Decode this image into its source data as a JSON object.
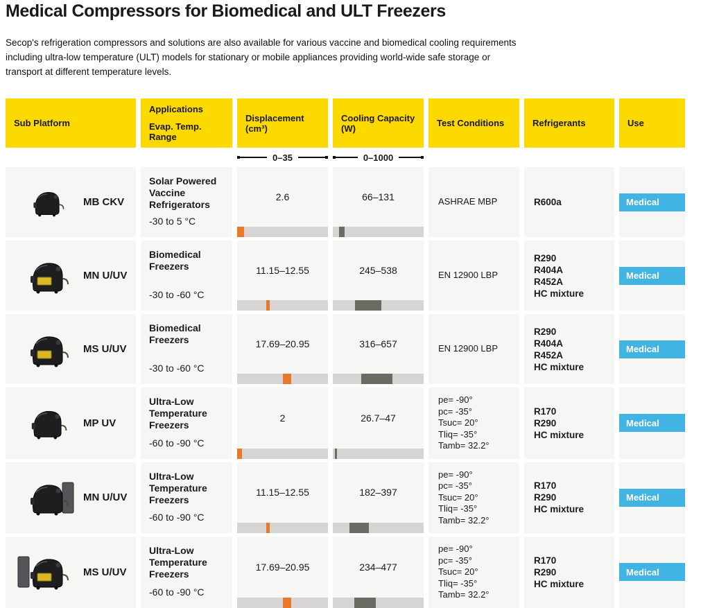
{
  "page": {
    "title": "Medical Compressors for Biomedical and ULT Freezers",
    "description": "Secop's refrigeration compressors and solutions are also available for various vaccine and biomedical cooling requirements including ultra-low temperature (ULT) models for stationary or mobile appliances providing world-wide safe storage or transport at different temperature levels."
  },
  "colors": {
    "accent_yellow": "#FCD900",
    "badge_blue": "#41B4E4",
    "bar_orange": "#E8792C",
    "bar_dark": "#6B6B63",
    "bar_track": "#D6D5D3",
    "cell_bg": "#F6F6F4"
  },
  "table": {
    "headers": {
      "sub_platform": "Sub Platform",
      "applications": "Applications",
      "evap_temp_range": "Evap. Temp. Range",
      "displacement": "Displacement (cm³)",
      "cooling_capacity": "Cooling Capacity (W)",
      "test_conditions": "Test Conditions",
      "refrigerants": "Refrigerants",
      "use": "Use"
    },
    "scales": {
      "displacement": {
        "label": "0–35",
        "min": 0,
        "max": 35
      },
      "cooling": {
        "label": "0–1000",
        "min": 0,
        "max": 1000
      }
    },
    "rows": [
      {
        "model": "MB CKV",
        "application": "Solar Powered Vaccine Refrigerators",
        "evap_temp_range": "-30 to 5 °C",
        "displacement": {
          "value": "2.6",
          "bar": [
            0,
            2.6
          ]
        },
        "cooling": {
          "value": "66–131",
          "bar": [
            66,
            131
          ]
        },
        "test_conditions": [
          "ASHRAE MBP"
        ],
        "refrigerants": [
          "R600a"
        ],
        "use": "Medical",
        "image": "compact"
      },
      {
        "model": "MN U/UV",
        "application": "Biomedical Freezers",
        "evap_temp_range": "-30 to -60 °C",
        "displacement": {
          "value": "11.15–12.55",
          "bar": [
            11.15,
            12.55
          ]
        },
        "cooling": {
          "value": "245–538",
          "bar": [
            245,
            538
          ]
        },
        "test_conditions": [
          "EN 12900 LBP"
        ],
        "refrigerants": [
          "R290",
          "R404A",
          "R452A",
          "HC mixture"
        ],
        "use": "Medical",
        "image": "dome"
      },
      {
        "model": "MS U/UV",
        "application": "Biomedical Freezers",
        "evap_temp_range": "-30 to -60 °C",
        "displacement": {
          "value": "17.69–20.95",
          "bar": [
            17.69,
            20.95
          ]
        },
        "cooling": {
          "value": "316–657",
          "bar": [
            316,
            657
          ]
        },
        "test_conditions": [
          "EN 12900 LBP"
        ],
        "refrigerants": [
          "R290",
          "R404A",
          "R452A",
          "HC mixture"
        ],
        "use": "Medical",
        "image": "dome"
      },
      {
        "model": "MP UV",
        "application": "Ultra-Low Temperature Freezers",
        "evap_temp_range": "-60 to -90 °C",
        "displacement": {
          "value": "2",
          "bar": [
            0,
            2
          ]
        },
        "cooling": {
          "value": "26.7–47",
          "bar": [
            26.7,
            47
          ]
        },
        "test_conditions": [
          "pe= -90°",
          "pc= -35°",
          "Tsuc= 20°",
          "Tliq= -35°",
          "Tamb= 32.2°"
        ],
        "refrigerants": [
          "R170",
          "R290",
          "HC mixture"
        ],
        "use": "Medical",
        "image": "box"
      },
      {
        "model": "MN U/UV",
        "application": "Ultra-Low Temperature Freezers",
        "evap_temp_range": "-60 to -90 °C",
        "displacement": {
          "value": "11.15–12.55",
          "bar": [
            11.15,
            12.55
          ]
        },
        "cooling": {
          "value": "182–397",
          "bar": [
            182,
            397
          ]
        },
        "test_conditions": [
          "pe= -90°",
          "pc= -35°",
          "Tsuc= 20°",
          "Tliq= -35°",
          "Tamb= 32.2°"
        ],
        "refrigerants": [
          "R170",
          "R290",
          "HC mixture"
        ],
        "use": "Medical",
        "image": "panel-right"
      },
      {
        "model": "MS U/UV",
        "application": "Ultra-Low Temperature Freezers",
        "evap_temp_range": "-60 to -90 °C",
        "displacement": {
          "value": "17.69–20.95",
          "bar": [
            17.69,
            20.95
          ]
        },
        "cooling": {
          "value": "234–477",
          "bar": [
            234,
            477
          ]
        },
        "test_conditions": [
          "pe= -90°",
          "pc= -35°",
          "Tsuc= 20°",
          "Tliq= -35°",
          "Tamb= 32.2°"
        ],
        "refrigerants": [
          "R170",
          "R290",
          "HC mixture"
        ],
        "use": "Medical",
        "image": "panel-left"
      }
    ]
  }
}
